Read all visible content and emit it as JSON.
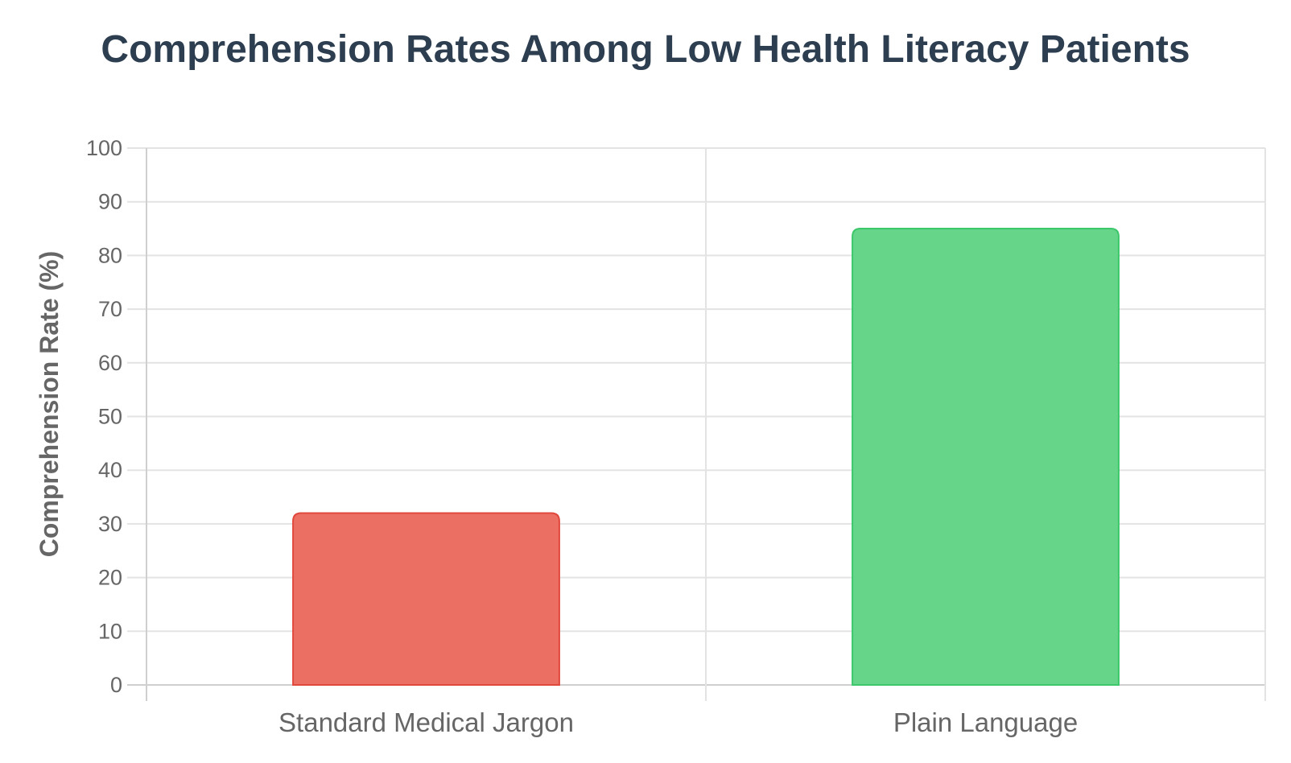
{
  "chart_data": {
    "type": "bar",
    "title": "Comprehension Rates Among Low Health Literacy Patients",
    "xlabel": "",
    "ylabel": "Comprehension Rate (%)",
    "categories": [
      "Standard Medical Jargon",
      "Plain Language"
    ],
    "values": [
      32,
      85
    ],
    "ylim": [
      0,
      100
    ],
    "yticks": [
      0,
      10,
      20,
      30,
      40,
      50,
      60,
      70,
      80,
      90,
      100
    ],
    "grid": true,
    "legend": "none",
    "bar_fill_colors": [
      "#ec6f63",
      "#66d58a"
    ],
    "bar_border_colors": [
      "#e0483c",
      "#3cc76a"
    ]
  }
}
